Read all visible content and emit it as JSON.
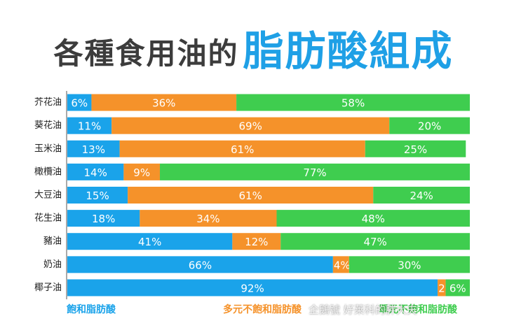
{
  "title": {
    "part1": "各種食用油的",
    "part2": "脂肪酸組成"
  },
  "chart_data": {
    "type": "bar",
    "orientation": "horizontal",
    "stacked": true,
    "categories": [
      "芥花油",
      "葵花油",
      "玉米油",
      "橄欖油",
      "大豆油",
      "花生油",
      "豬油",
      "奶油",
      "椰子油"
    ],
    "series": [
      {
        "name": "飽和脂肪酸",
        "color": "#1aa3ea",
        "values": [
          6,
          11,
          13,
          14,
          15,
          18,
          41,
          66,
          92
        ]
      },
      {
        "name": "多元不飽和脂肪酸",
        "color": "#f5922a",
        "values": [
          36,
          69,
          61,
          9,
          61,
          34,
          12,
          4,
          2
        ]
      },
      {
        "name": "單元不飽和脂肪酸",
        "color": "#3fcd4f",
        "values": [
          58,
          20,
          25,
          77,
          24,
          48,
          47,
          30,
          6
        ]
      }
    ],
    "labels": [
      [
        "6%",
        "36%",
        "58%"
      ],
      [
        "11%",
        "69%",
        "20%"
      ],
      [
        "13%",
        "61%",
        "25%"
      ],
      [
        "14%",
        "9%",
        "77%"
      ],
      [
        "15%",
        "61%",
        "24%"
      ],
      [
        "18%",
        "34%",
        "48%"
      ],
      [
        "41%",
        "12%",
        "47%"
      ],
      [
        "66%",
        "4%",
        "30%"
      ],
      [
        "92%",
        "2%",
        "6%"
      ]
    ],
    "legend": [
      "飽和脂肪酸",
      "多元不飽和脂肪酸",
      "單元不飽和脂肪酸"
    ],
    "legend_placement": "bottom",
    "xlim": [
      0,
      100
    ],
    "grid": false
  },
  "watermark": "企鵝號 好莱科的胖大夫"
}
